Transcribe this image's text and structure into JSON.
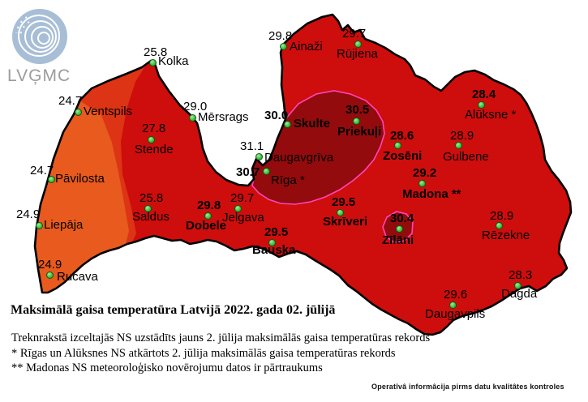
{
  "logo": {
    "wordmark": "LVĢMC"
  },
  "title": "Maksimālā gaisa temperatūra Latvijā 2022. gada 02. jūlijā",
  "footnotes": [
    "Treknrakstā izceltajās NS uzstādīts jauns 2. jūlija maksimālās gaisa temperatūras rekords",
    "* Rīgas un Alūksnes NS atkārtots 2. jūlija maksimālās gaisa temperatūras rekords",
    "** Madonas NS meteoroloģisko novērojumu datos ir pārtraukums"
  ],
  "disclaimer": "Operatîvâ informâcija pirms datu kvalitâtes kontroles",
  "map": {
    "colors": {
      "base_red": "#ce0d0d",
      "band_mid_orange": "#dc3415",
      "band_coast_orange": "#e85a1e",
      "hot_region_maroon": "#930b0d",
      "contour_magenta": "#ff44bb",
      "coastline_black": "#000000",
      "station_dot_green": "#44c244",
      "logo_blue": "#a7bed6"
    },
    "stations": [
      {
        "name": "Kolka",
        "value": "25.8",
        "record": false,
        "name_bold": false,
        "dot": [
          188,
          77
        ],
        "vp": [
          177,
          57
        ],
        "np": [
          195,
          68
        ]
      },
      {
        "name": "Ventspils",
        "value": "24.7",
        "record": false,
        "name_bold": false,
        "dot": [
          96,
          138
        ],
        "vp": [
          72,
          117
        ],
        "np": [
          103,
          130
        ]
      },
      {
        "name": "Mērsrags",
        "value": "29.0",
        "record": false,
        "name_bold": false,
        "dot": [
          237,
          145
        ],
        "vp": [
          226,
          124
        ],
        "np": [
          244,
          137
        ]
      },
      {
        "name": "Stende",
        "value": "27.8",
        "record": false,
        "name_bold": false,
        "dot": [
          186,
          172
        ],
        "vp": [
          175,
          151
        ],
        "np": [
          166,
          177
        ]
      },
      {
        "name": "Ainaži",
        "value": "29.8",
        "record": false,
        "name_bold": false,
        "dot": [
          349,
          57
        ],
        "vp": [
          331,
          37
        ],
        "np": [
          357,
          50
        ]
      },
      {
        "name": "Rūjiena",
        "value": "29.7",
        "record": false,
        "name_bold": false,
        "dot": [
          441,
          54
        ],
        "vp": [
          422,
          34
        ],
        "np": [
          415,
          59
        ]
      },
      {
        "name": "Skulte",
        "value": "30.0",
        "record": true,
        "name_bold": true,
        "dot": [
          354,
          153
        ],
        "vp": [
          326,
          135
        ],
        "np": [
          362,
          145
        ]
      },
      {
        "name": "Priekuļi",
        "value": "30.5",
        "record": true,
        "name_bold": true,
        "dot": [
          439,
          149
        ],
        "vp": [
          426,
          128
        ],
        "np": [
          416,
          155
        ]
      },
      {
        "name": "Daugavgrīva",
        "value": "31.1",
        "record": false,
        "name_bold": false,
        "dot": [
          319,
          193
        ],
        "vp": [
          296,
          173
        ],
        "np": [
          326,
          187
        ]
      },
      {
        "name": "Rīga *",
        "value": "30.7",
        "record": true,
        "name_bold": false,
        "dot": [
          328,
          211
        ],
        "vp": [
          291,
          205
        ],
        "np": [
          334,
          215
        ]
      },
      {
        "name": "Zosēni",
        "value": "28.6",
        "record": true,
        "name_bold": true,
        "dot": [
          490,
          179
        ],
        "vp": [
          481,
          160
        ],
        "np": [
          472,
          185
        ]
      },
      {
        "name": "Gulbene",
        "value": "28.9",
        "record": false,
        "name_bold": false,
        "dot": [
          565,
          179
        ],
        "vp": [
          555,
          160
        ],
        "np": [
          546,
          186
        ]
      },
      {
        "name": "Alūksne *",
        "value": "28.4",
        "record": true,
        "name_bold": false,
        "dot": [
          593,
          129
        ],
        "vp": [
          582,
          109
        ],
        "np": [
          573,
          134
        ]
      },
      {
        "name": "Madona **",
        "value": "29.2",
        "record": true,
        "name_bold": true,
        "dot": [
          520,
          226
        ],
        "vp": [
          509,
          206
        ],
        "np": [
          496,
          232
        ]
      },
      {
        "name": "Jelgava",
        "value": "29.7",
        "record": false,
        "name_bold": false,
        "dot": [
          293,
          257
        ],
        "vp": [
          284,
          237
        ],
        "np": [
          274,
          261
        ]
      },
      {
        "name": "Dobele",
        "value": "29.8",
        "record": true,
        "name_bold": true,
        "dot": [
          256,
          266
        ],
        "vp": [
          243,
          246
        ],
        "np": [
          229,
          271
        ]
      },
      {
        "name": "Bauska",
        "value": "29.5",
        "record": true,
        "name_bold": true,
        "dot": [
          335,
          299
        ],
        "vp": [
          326,
          279
        ],
        "np": [
          311,
          301
        ]
      },
      {
        "name": "Skrīveri",
        "value": "29.5",
        "record": true,
        "name_bold": true,
        "dot": [
          419,
          262
        ],
        "vp": [
          409,
          242
        ],
        "np": [
          398,
          266
        ]
      },
      {
        "name": "Zīlāni",
        "value": "30.4",
        "record": true,
        "name_bold": true,
        "dot": [
          492,
          282
        ],
        "vp": [
          481,
          262
        ],
        "np": [
          471,
          289
        ]
      },
      {
        "name": "Rēzekne",
        "value": "28.9",
        "record": false,
        "name_bold": false,
        "dot": [
          615,
          278
        ],
        "vp": [
          604,
          259
        ],
        "np": [
          594,
          283
        ]
      },
      {
        "name": "Dagda",
        "value": "28.3",
        "record": false,
        "name_bold": false,
        "dot": [
          638,
          352
        ],
        "vp": [
          627,
          332
        ],
        "np": [
          618,
          355
        ]
      },
      {
        "name": "Daugavpils",
        "value": "29.6",
        "record": false,
        "name_bold": false,
        "dot": [
          558,
          376
        ],
        "vp": [
          547,
          356
        ],
        "np": [
          524,
          380
        ]
      },
      {
        "name": "Pāvilosta",
        "value": "24.7",
        "record": false,
        "name_bold": false,
        "dot": [
          63,
          221
        ],
        "vp": [
          37,
          203
        ],
        "np": [
          68,
          213
        ]
      },
      {
        "name": "Saldus",
        "value": "25.8",
        "record": false,
        "name_bold": false,
        "dot": [
          182,
          257
        ],
        "vp": [
          172,
          237
        ],
        "np": [
          163,
          260
        ]
      },
      {
        "name": "Liepāja",
        "value": "24.9",
        "record": false,
        "name_bold": false,
        "dot": [
          48,
          278
        ],
        "vp": [
          20,
          257
        ],
        "np": [
          54,
          270
        ]
      },
      {
        "name": "Rucava",
        "value": "24.9",
        "record": false,
        "name_bold": false,
        "dot": [
          61,
          339
        ],
        "vp": [
          47,
          319
        ],
        "np": [
          70,
          334
        ]
      }
    ]
  }
}
